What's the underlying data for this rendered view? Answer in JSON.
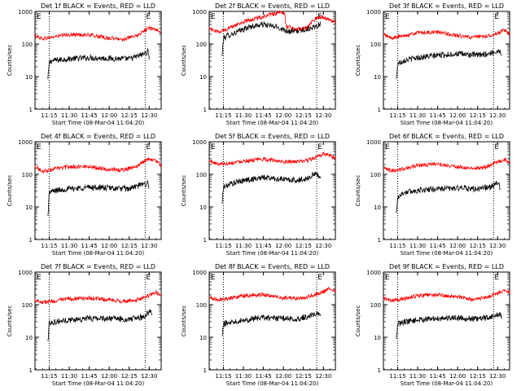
{
  "chart_data": {
    "type": "line",
    "shared": {
      "xlabel": "Start Time (08-Mar-04 11:04:20)",
      "ylabel": "Counts/sec",
      "x_ticks": [
        "11:15",
        "11:30",
        "11:45",
        "12:00",
        "12:15",
        "12:30"
      ],
      "x_tick_minutes": [
        15,
        30,
        45,
        60,
        75,
        90
      ],
      "xlim_minutes": [
        4.33,
        99
      ],
      "y_scale": "log",
      "ylim": [
        1,
        1000
      ],
      "y_ticks": [
        "1",
        "10",
        "100",
        "1000"
      ],
      "corner_marker": "E",
      "colors": {
        "events": "#000000",
        "lld": "#ff0000",
        "axis": "#000000"
      }
    },
    "panels": [
      {
        "title": "Det 1f BLACK = Events, RED = LLD",
        "markers_minutes": [
          15,
          87
        ],
        "data_start_minutes": 14,
        "data_end_minutes": 90,
        "series": [
          {
            "color": "#000000",
            "x": [
              14,
              15,
              16,
              20,
              30,
              45,
              60,
              75,
              80,
              85,
              88,
              89,
              90
            ],
            "y": [
              8,
              25,
              30,
              32,
              35,
              38,
              36,
              35,
              40,
              48,
              55,
              60,
              40
            ]
          },
          {
            "color": "#ff0000",
            "x": [
              4.33,
              10,
              20,
              30,
              45,
              60,
              70,
              80,
              85,
              90,
              95,
              99
            ],
            "y": [
              180,
              145,
              170,
              195,
              190,
              150,
              140,
              170,
              230,
              320,
              280,
              210
            ]
          }
        ]
      },
      {
        "title": "Det 2f BLACK = Events, RED = LLD",
        "markers_minutes": [
          15,
          85
        ],
        "data_start_minutes": 14,
        "data_end_minutes": 88,
        "series": [
          {
            "color": "#000000",
            "x": [
              14,
              15,
              18,
              25,
              35,
              45,
              55,
              60,
              65,
              72,
              80,
              85,
              87,
              88
            ],
            "y": [
              40,
              150,
              180,
              230,
              340,
              400,
              330,
              280,
              240,
              260,
              310,
              360,
              420,
              400
            ]
          },
          {
            "color": "#ff0000",
            "x": [
              4.33,
              10,
              15,
              20,
              30,
              40,
              50,
              60,
              61,
              62,
              70,
              78,
              82,
              88,
              95,
              99
            ],
            "y": [
              300,
              240,
              260,
              320,
              480,
              620,
              780,
              950,
              800,
              350,
              280,
              330,
              550,
              680,
              550,
              480
            ]
          }
        ]
      },
      {
        "title": "Det 3f BLACK = Events, RED = LLD",
        "markers_minutes": [
          15,
          87
        ],
        "data_start_minutes": 14,
        "data_end_minutes": 93,
        "series": [
          {
            "color": "#000000",
            "x": [
              14,
              15,
              20,
              30,
              45,
              60,
              75,
              85,
              90,
              92,
              93
            ],
            "y": [
              8,
              25,
              32,
              38,
              45,
              50,
              45,
              52,
              60,
              65,
              38
            ]
          },
          {
            "color": "#ff0000",
            "x": [
              4.33,
              10,
              20,
              30,
              45,
              60,
              70,
              80,
              90,
              95,
              99
            ],
            "y": [
              200,
              150,
              180,
              220,
              230,
              180,
              160,
              170,
              210,
              270,
              200
            ]
          }
        ]
      },
      {
        "title": "Det 4f BLACK = Events, RED = LLD",
        "markers_minutes": [
          15,
          87
        ],
        "data_start_minutes": 14,
        "data_end_minutes": 90,
        "series": [
          {
            "color": "#000000",
            "x": [
              14,
              15,
              20,
              30,
              45,
              60,
              75,
              80,
              85,
              88,
              89,
              90
            ],
            "y": [
              5,
              28,
              32,
              36,
              40,
              38,
              36,
              42,
              48,
              52,
              58,
              40
            ]
          },
          {
            "color": "#ff0000",
            "x": [
              4.33,
              10,
              20,
              30,
              45,
              60,
              70,
              80,
              85,
              90,
              95,
              99
            ],
            "y": [
              180,
              120,
              150,
              170,
              175,
              140,
              135,
              170,
              230,
              310,
              260,
              190
            ]
          }
        ]
      },
      {
        "title": "Det 5f BLACK = Events, RED = LLD",
        "markers_minutes": [
          15,
          85
        ],
        "data_start_minutes": 14,
        "data_end_minutes": 88,
        "series": [
          {
            "color": "#000000",
            "x": [
              14,
              15,
              20,
              30,
              45,
              60,
              70,
              78,
              85,
              88
            ],
            "y": [
              12,
              40,
              50,
              65,
              80,
              70,
              65,
              75,
              110,
              70
            ]
          },
          {
            "color": "#ff0000",
            "x": [
              4.33,
              10,
              20,
              30,
              45,
              60,
              70,
              78,
              85,
              90,
              95,
              99
            ],
            "y": [
              260,
              210,
              220,
              260,
              290,
              250,
              240,
              270,
              330,
              430,
              380,
              300
            ]
          }
        ]
      },
      {
        "title": "Det 6f BLACK = Events, RED = LLD",
        "markers_minutes": [
          15,
          87
        ],
        "data_start_minutes": 14,
        "data_end_minutes": 92,
        "series": [
          {
            "color": "#000000",
            "x": [
              14,
              15,
              20,
              30,
              45,
              60,
              75,
              85,
              89,
              91,
              92
            ],
            "y": [
              6,
              20,
              28,
              32,
              36,
              38,
              35,
              42,
              50,
              58,
              35
            ]
          },
          {
            "color": "#ff0000",
            "x": [
              4.33,
              10,
              20,
              30,
              45,
              60,
              70,
              80,
              90,
              95,
              99
            ],
            "y": [
              150,
              130,
              150,
              190,
              210,
              170,
              150,
              160,
              240,
              290,
              230
            ]
          }
        ]
      },
      {
        "title": "Det 7f BLACK = Events, RED = LLD",
        "markers_minutes": [
          15,
          87
        ],
        "data_start_minutes": 14,
        "data_end_minutes": 92,
        "series": [
          {
            "color": "#000000",
            "x": [
              14,
              15,
              20,
              30,
              45,
              60,
              75,
              85,
              89,
              91,
              92
            ],
            "y": [
              7,
              28,
              30,
              34,
              38,
              38,
              35,
              42,
              55,
              62,
              45
            ]
          },
          {
            "color": "#ff0000",
            "x": [
              4.33,
              10,
              20,
              30,
              45,
              60,
              70,
              80,
              90,
              95,
              99
            ],
            "y": [
              140,
              120,
              130,
              150,
              160,
              140,
              125,
              135,
              190,
              240,
              200
            ]
          }
        ]
      },
      {
        "title": "Det 8f BLACK = Events, RED = LLD",
        "markers_minutes": [
          15,
          85
        ],
        "data_start_minutes": 14,
        "data_end_minutes": 88,
        "series": [
          {
            "color": "#000000",
            "x": [
              14,
              15,
              20,
              30,
              45,
              60,
              70,
              80,
              85,
              88
            ],
            "y": [
              10,
              25,
              30,
              34,
              40,
              38,
              36,
              45,
              55,
              40
            ]
          },
          {
            "color": "#ff0000",
            "x": [
              4.33,
              10,
              20,
              30,
              45,
              60,
              70,
              80,
              90,
              95,
              99
            ],
            "y": [
              170,
              140,
              160,
              190,
              200,
              160,
              155,
              180,
              250,
              320,
              260
            ]
          }
        ]
      },
      {
        "title": "Det 9f BLACK = Events, RED = LLD",
        "markers_minutes": [
          15,
          87
        ],
        "data_start_minutes": 14,
        "data_end_minutes": 93,
        "series": [
          {
            "color": "#000000",
            "x": [
              14,
              15,
              20,
              30,
              45,
              60,
              75,
              85,
              90,
              92,
              93
            ],
            "y": [
              8,
              25,
              30,
              34,
              38,
              40,
              36,
              42,
              48,
              55,
              35
            ]
          },
          {
            "color": "#ff0000",
            "x": [
              4.33,
              10,
              20,
              30,
              45,
              60,
              70,
              80,
              90,
              95,
              99
            ],
            "y": [
              160,
              130,
              150,
              190,
              200,
              170,
              150,
              160,
              220,
              280,
              240
            ]
          }
        ]
      }
    ]
  }
}
